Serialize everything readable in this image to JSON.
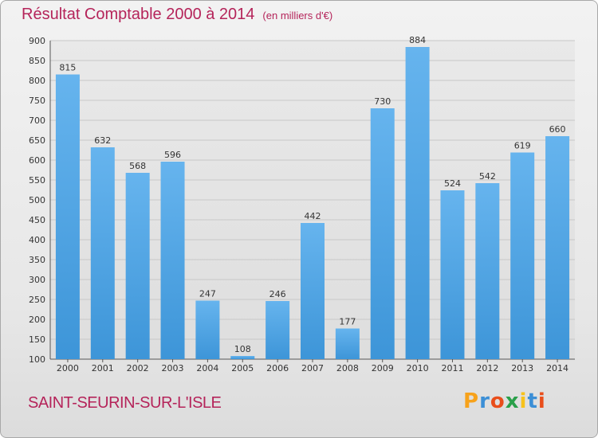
{
  "title": "Résultat Comptable 2000 à 2014",
  "subtitle": "(en milliers d'€)",
  "commune": "SAINT-SEURIN-SUR-L'ISLE",
  "logo": {
    "letters": [
      "P",
      "r",
      "o",
      "x",
      "i",
      "t",
      "i"
    ],
    "colors": [
      "#f7a21b",
      "#3c8fd6",
      "#e94e1b",
      "#2aa04a",
      "#f7c21b",
      "#3c8fd6",
      "#e94e1b"
    ]
  },
  "colors": {
    "title": "#b5245a",
    "bar": "#3d95d8",
    "bar_light": "#66b4ee",
    "grid": "#c8c8c8"
  },
  "chart_data": {
    "type": "bar",
    "title": "Résultat Comptable 2000 à 2014",
    "ylabel": "",
    "xlabel": "",
    "categories": [
      "2000",
      "2001",
      "2002",
      "2003",
      "2004",
      "2005",
      "2006",
      "2007",
      "2008",
      "2009",
      "2010",
      "2011",
      "2012",
      "2013",
      "2014"
    ],
    "values": [
      815,
      632,
      568,
      596,
      247,
      108,
      246,
      442,
      177,
      730,
      884,
      524,
      542,
      619,
      660
    ],
    "ylim": [
      100,
      900
    ],
    "yticks": [
      100,
      150,
      200,
      250,
      300,
      350,
      400,
      450,
      500,
      550,
      600,
      650,
      700,
      750,
      800,
      850,
      900
    ],
    "grid": true
  }
}
